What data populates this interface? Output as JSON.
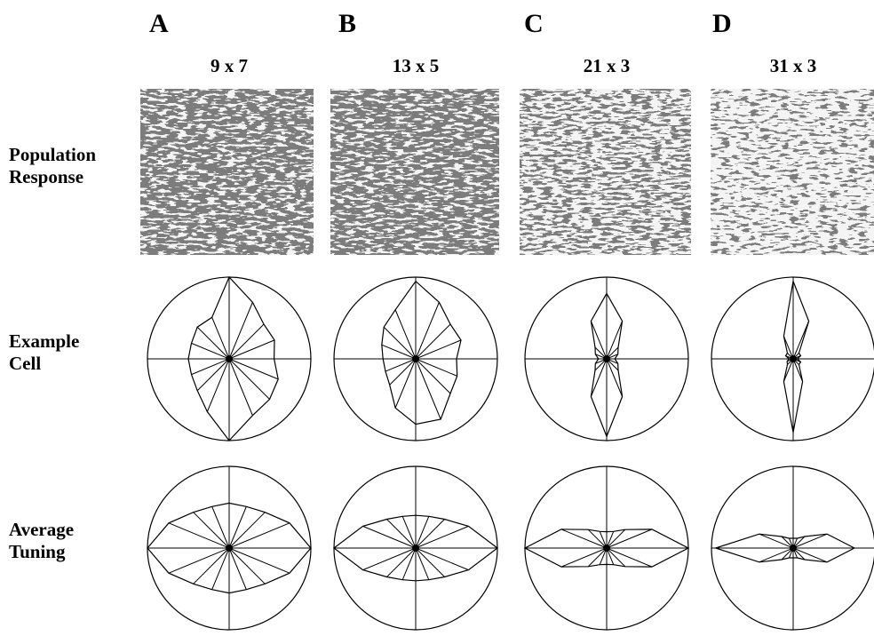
{
  "row_labels": [
    "Population Response",
    "Example Cell",
    "Average Tuning"
  ],
  "panels": [
    {
      "letter": "A",
      "size": "9 x 7",
      "example_cell": [
        0.55,
        0.6,
        0.6,
        0.75,
        1.0,
        0.55,
        0.55,
        0.5,
        0.5,
        0.5,
        0.55,
        0.7,
        1.0,
        0.75,
        0.7,
        0.65
      ],
      "average_tuning": [
        1.0,
        0.8,
        0.62,
        0.55,
        0.55,
        0.55,
        0.62,
        0.8,
        1.0,
        0.8,
        0.62,
        0.55,
        0.55,
        0.55,
        0.62,
        0.8
      ]
    },
    {
      "letter": "B",
      "size": "13 x 5",
      "example_cell": [
        0.5,
        0.6,
        0.6,
        0.75,
        0.95,
        0.65,
        0.55,
        0.45,
        0.4,
        0.4,
        0.45,
        0.65,
        0.8,
        0.8,
        0.6,
        0.55
      ],
      "average_tuning": [
        1.0,
        0.7,
        0.5,
        0.42,
        0.4,
        0.42,
        0.5,
        0.7,
        1.0,
        0.7,
        0.5,
        0.42,
        0.4,
        0.42,
        0.5,
        0.7
      ]
    },
    {
      "letter": "C",
      "size": "21 x 3",
      "example_cell": [
        0.1,
        0.15,
        0.2,
        0.5,
        0.8,
        0.5,
        0.2,
        0.15,
        0.1,
        0.15,
        0.2,
        0.5,
        0.95,
        0.5,
        0.2,
        0.15
      ],
      "average_tuning": [
        1.0,
        0.6,
        0.32,
        0.22,
        0.2,
        0.22,
        0.32,
        0.6,
        1.0,
        0.6,
        0.32,
        0.22,
        0.2,
        0.22,
        0.32,
        0.6
      ]
    },
    {
      "letter": "D",
      "size": "31 x 3",
      "example_cell": [
        0.05,
        0.1,
        0.1,
        0.5,
        0.95,
        0.3,
        0.1,
        0.1,
        0.05,
        0.08,
        0.1,
        0.3,
        0.9,
        0.3,
        0.1,
        0.1
      ],
      "average_tuning": [
        0.75,
        0.45,
        0.2,
        0.13,
        0.12,
        0.13,
        0.2,
        0.45,
        0.95,
        0.45,
        0.2,
        0.13,
        0.12,
        0.13,
        0.2,
        0.45
      ]
    }
  ]
}
